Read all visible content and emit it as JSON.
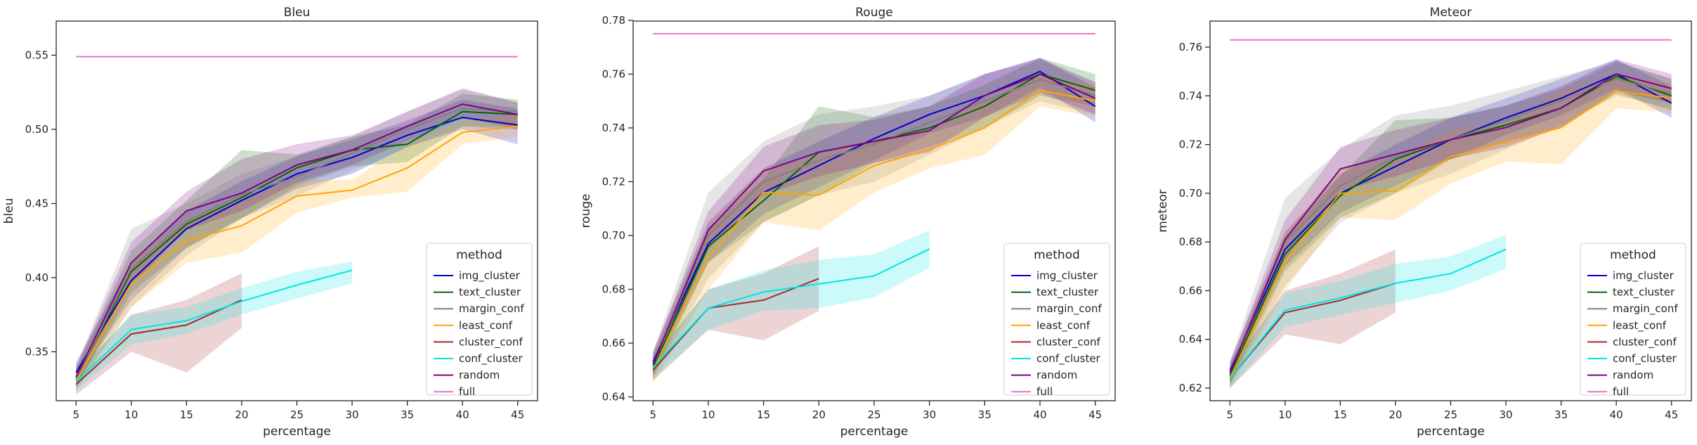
{
  "chart_data": [
    {
      "type": "line",
      "title": "Bleu",
      "xlabel": "percentage",
      "ylabel": "bleu",
      "xlim": [
        3.2,
        46.8
      ],
      "ylim": [
        0.317,
        0.573
      ],
      "xticks": [
        5,
        10,
        15,
        20,
        25,
        30,
        35,
        40,
        45
      ],
      "xtick_labels": [
        "5",
        "10",
        "15",
        "20",
        "25",
        "30",
        "35",
        "40",
        "45"
      ],
      "yticks": [
        0.35,
        0.4,
        0.45,
        0.5,
        0.55
      ],
      "ytick_labels": [
        "0.35",
        "0.40",
        "0.45",
        "0.50",
        "0.55"
      ],
      "grid": false,
      "legend_placement": "lower-right",
      "legend_title": "method",
      "series": [
        {
          "name": "img_cluster",
          "color": "#0000cc",
          "x": [
            5,
            10,
            15,
            20,
            25,
            30,
            35,
            40,
            45
          ],
          "values": [
            0.336,
            0.398,
            0.433,
            0.452,
            0.47,
            0.481,
            0.496,
            0.508,
            0.503
          ],
          "lower": [
            0.33,
            0.385,
            0.42,
            0.44,
            0.46,
            0.47,
            0.488,
            0.5,
            0.49
          ],
          "upper": [
            0.343,
            0.41,
            0.445,
            0.465,
            0.482,
            0.493,
            0.506,
            0.52,
            0.514
          ]
        },
        {
          "name": "text_cluster",
          "color": "#006600",
          "x": [
            5,
            10,
            15,
            20,
            25,
            30,
            35,
            40,
            45
          ],
          "values": [
            0.332,
            0.404,
            0.436,
            0.454,
            0.474,
            0.486,
            0.49,
            0.512,
            0.51
          ],
          "lower": [
            0.326,
            0.39,
            0.42,
            0.44,
            0.462,
            0.475,
            0.478,
            0.502,
            0.5
          ],
          "upper": [
            0.338,
            0.418,
            0.452,
            0.486,
            0.483,
            0.495,
            0.503,
            0.524,
            0.52
          ]
        },
        {
          "name": "margin_conf",
          "color": "#808080",
          "x": [
            5,
            10,
            15,
            20,
            25,
            30,
            35,
            40,
            45
          ],
          "values": [
            0.332,
            0.406,
            0.438,
            0.456,
            0.468,
            0.484,
            0.5,
            0.514,
            0.512
          ],
          "lower": [
            0.325,
            0.38,
            0.415,
            0.44,
            0.455,
            0.472,
            0.488,
            0.502,
            0.502
          ],
          "upper": [
            0.34,
            0.433,
            0.45,
            0.47,
            0.482,
            0.495,
            0.512,
            0.528,
            0.518
          ]
        },
        {
          "name": "least_conf",
          "color": "#ffa500",
          "x": [
            5,
            10,
            15,
            20,
            25,
            30,
            35,
            40,
            45
          ],
          "values": [
            0.33,
            0.396,
            0.425,
            0.435,
            0.455,
            0.459,
            0.474,
            0.498,
            0.502
          ],
          "lower": [
            0.323,
            0.38,
            0.41,
            0.417,
            0.444,
            0.454,
            0.458,
            0.49,
            0.495
          ],
          "upper": [
            0.337,
            0.41,
            0.44,
            0.453,
            0.466,
            0.466,
            0.49,
            0.506,
            0.51
          ]
        },
        {
          "name": "cluster_conf",
          "color": "#a52a2a",
          "x": [
            5,
            10,
            15,
            20
          ],
          "values": [
            0.328,
            0.362,
            0.368,
            0.385
          ],
          "lower": [
            0.321,
            0.35,
            0.336,
            0.366
          ],
          "upper": [
            0.335,
            0.375,
            0.385,
            0.403
          ]
        },
        {
          "name": "conf_cluster",
          "color": "#00e5e5",
          "x": [
            5,
            10,
            15,
            20,
            25,
            30
          ],
          "values": [
            0.33,
            0.365,
            0.371,
            0.384,
            0.395,
            0.405
          ],
          "lower": [
            0.324,
            0.355,
            0.362,
            0.375,
            0.386,
            0.396
          ],
          "upper": [
            0.336,
            0.375,
            0.38,
            0.393,
            0.404,
            0.411
          ]
        },
        {
          "name": "random",
          "color": "#800080",
          "x": [
            5,
            10,
            15,
            20,
            25,
            30,
            35,
            40,
            45
          ],
          "values": [
            0.333,
            0.41,
            0.445,
            0.457,
            0.476,
            0.486,
            0.502,
            0.517,
            0.51
          ],
          "lower": [
            0.327,
            0.395,
            0.432,
            0.445,
            0.464,
            0.476,
            0.492,
            0.508,
            0.5
          ],
          "upper": [
            0.34,
            0.424,
            0.458,
            0.48,
            0.49,
            0.496,
            0.512,
            0.527,
            0.518
          ]
        },
        {
          "name": "full",
          "color": "#e377c2",
          "x": [
            5,
            45
          ],
          "values": [
            0.549,
            0.549
          ]
        }
      ]
    },
    {
      "type": "line",
      "title": "Rouge",
      "xlabel": "percentage",
      "ylabel": "rouge",
      "xlim": [
        3.2,
        46.8
      ],
      "ylim": [
        0.6386,
        0.7797
      ],
      "xticks": [
        5,
        10,
        15,
        20,
        25,
        30,
        35,
        40,
        45
      ],
      "xtick_labels": [
        "5",
        "10",
        "15",
        "20",
        "25",
        "30",
        "35",
        "40",
        "45"
      ],
      "yticks": [
        0.64,
        0.66,
        0.68,
        0.7,
        0.72,
        0.74,
        0.76,
        0.78
      ],
      "ytick_labels": [
        "0.64",
        "0.66",
        "0.68",
        "0.70",
        "0.72",
        "0.74",
        "0.76",
        "0.78"
      ],
      "grid": false,
      "legend_placement": "lower-right",
      "legend_title": "method",
      "series": [
        {
          "name": "img_cluster",
          "color": "#0000cc",
          "x": [
            5,
            10,
            15,
            20,
            25,
            30,
            35,
            40,
            45
          ],
          "values": [
            0.653,
            0.697,
            0.716,
            0.726,
            0.736,
            0.745,
            0.752,
            0.761,
            0.748
          ],
          "lower": [
            0.649,
            0.69,
            0.708,
            0.718,
            0.728,
            0.738,
            0.744,
            0.755,
            0.742
          ],
          "upper": [
            0.657,
            0.705,
            0.725,
            0.735,
            0.744,
            0.752,
            0.76,
            0.766,
            0.755
          ]
        },
        {
          "name": "text_cluster",
          "color": "#006600",
          "x": [
            5,
            10,
            15,
            20,
            25,
            30,
            35,
            40,
            45
          ],
          "values": [
            0.651,
            0.696,
            0.713,
            0.731,
            0.735,
            0.74,
            0.748,
            0.76,
            0.754
          ],
          "lower": [
            0.647,
            0.69,
            0.705,
            0.715,
            0.727,
            0.733,
            0.74,
            0.752,
            0.748
          ],
          "upper": [
            0.655,
            0.703,
            0.721,
            0.748,
            0.744,
            0.748,
            0.756,
            0.766,
            0.76
          ]
        },
        {
          "name": "margin_conf",
          "color": "#808080",
          "x": [
            5,
            10,
            15,
            20,
            25,
            30,
            35,
            40,
            45
          ],
          "values": [
            0.652,
            0.7,
            0.72,
            0.728,
            0.734,
            0.742,
            0.75,
            0.758,
            0.752
          ],
          "lower": [
            0.647,
            0.684,
            0.705,
            0.715,
            0.72,
            0.73,
            0.74,
            0.75,
            0.745
          ],
          "upper": [
            0.657,
            0.716,
            0.735,
            0.745,
            0.748,
            0.752,
            0.76,
            0.765,
            0.757
          ]
        },
        {
          "name": "least_conf",
          "color": "#ffa500",
          "x": [
            5,
            10,
            15,
            20,
            25,
            30,
            35,
            40,
            45
          ],
          "values": [
            0.65,
            0.692,
            0.716,
            0.715,
            0.726,
            0.732,
            0.74,
            0.754,
            0.75
          ],
          "lower": [
            0.645,
            0.68,
            0.705,
            0.702,
            0.716,
            0.725,
            0.73,
            0.748,
            0.744
          ],
          "upper": [
            0.655,
            0.704,
            0.725,
            0.73,
            0.736,
            0.74,
            0.75,
            0.76,
            0.756
          ]
        },
        {
          "name": "cluster_conf",
          "color": "#a52a2a",
          "x": [
            5,
            10,
            15,
            20
          ],
          "values": [
            0.65,
            0.673,
            0.676,
            0.684
          ],
          "lower": [
            0.646,
            0.665,
            0.661,
            0.672
          ],
          "upper": [
            0.654,
            0.68,
            0.686,
            0.696
          ]
        },
        {
          "name": "conf_cluster",
          "color": "#00e5e5",
          "x": [
            5,
            10,
            15,
            20,
            25,
            30
          ],
          "values": [
            0.651,
            0.673,
            0.679,
            0.682,
            0.685,
            0.695
          ],
          "lower": [
            0.647,
            0.665,
            0.672,
            0.673,
            0.677,
            0.688
          ],
          "upper": [
            0.655,
            0.68,
            0.687,
            0.691,
            0.693,
            0.702
          ]
        },
        {
          "name": "random",
          "color": "#800080",
          "x": [
            5,
            10,
            15,
            20,
            25,
            30,
            35,
            40,
            45
          ],
          "values": [
            0.652,
            0.702,
            0.724,
            0.731,
            0.735,
            0.739,
            0.752,
            0.76,
            0.751
          ],
          "lower": [
            0.648,
            0.695,
            0.715,
            0.722,
            0.727,
            0.731,
            0.744,
            0.753,
            0.745
          ],
          "upper": [
            0.656,
            0.709,
            0.733,
            0.741,
            0.743,
            0.748,
            0.76,
            0.766,
            0.757
          ]
        },
        {
          "name": "full",
          "color": "#e377c2",
          "x": [
            5,
            45
          ],
          "values": [
            0.775,
            0.775
          ]
        }
      ]
    },
    {
      "type": "line",
      "title": "Meteor",
      "xlabel": "percentage",
      "ylabel": "meteor",
      "xlim": [
        3.2,
        46.8
      ],
      "ylim": [
        0.6148,
        0.7707
      ],
      "xticks": [
        5,
        10,
        15,
        20,
        25,
        30,
        35,
        40,
        45
      ],
      "xtick_labels": [
        "5",
        "10",
        "15",
        "20",
        "25",
        "30",
        "35",
        "40",
        "45"
      ],
      "yticks": [
        0.62,
        0.64,
        0.66,
        0.68,
        0.7,
        0.72,
        0.74,
        0.76
      ],
      "ytick_labels": [
        "0.62",
        "0.64",
        "0.66",
        "0.68",
        "0.70",
        "0.72",
        "0.74",
        "0.76"
      ],
      "grid": false,
      "legend_placement": "lower-right",
      "legend_title": "method",
      "series": [
        {
          "name": "img_cluster",
          "color": "#0000cc",
          "x": [
            5,
            10,
            15,
            20,
            25,
            30,
            35,
            40,
            45
          ],
          "values": [
            0.627,
            0.677,
            0.7,
            0.711,
            0.722,
            0.731,
            0.739,
            0.749,
            0.737
          ],
          "lower": [
            0.623,
            0.67,
            0.692,
            0.703,
            0.714,
            0.724,
            0.732,
            0.743,
            0.731
          ],
          "upper": [
            0.631,
            0.684,
            0.708,
            0.72,
            0.731,
            0.739,
            0.747,
            0.755,
            0.744
          ]
        },
        {
          "name": "text_cluster",
          "color": "#006600",
          "x": [
            5,
            10,
            15,
            20,
            25,
            30,
            35,
            40,
            45
          ],
          "values": [
            0.625,
            0.675,
            0.699,
            0.714,
            0.722,
            0.728,
            0.735,
            0.748,
            0.74
          ],
          "lower": [
            0.621,
            0.668,
            0.69,
            0.7,
            0.714,
            0.721,
            0.727,
            0.741,
            0.734
          ],
          "upper": [
            0.629,
            0.682,
            0.707,
            0.73,
            0.731,
            0.736,
            0.743,
            0.754,
            0.747
          ]
        },
        {
          "name": "margin_conf",
          "color": "#808080",
          "x": [
            5,
            10,
            15,
            20,
            25,
            30,
            35,
            40,
            45
          ],
          "values": [
            0.626,
            0.68,
            0.703,
            0.715,
            0.722,
            0.73,
            0.738,
            0.747,
            0.741
          ],
          "lower": [
            0.621,
            0.662,
            0.688,
            0.7,
            0.708,
            0.718,
            0.728,
            0.74,
            0.735
          ],
          "upper": [
            0.631,
            0.698,
            0.718,
            0.732,
            0.736,
            0.742,
            0.748,
            0.754,
            0.747
          ]
        },
        {
          "name": "least_conf",
          "color": "#ffa500",
          "x": [
            5,
            10,
            15,
            20,
            25,
            30,
            35,
            40,
            45
          ],
          "values": [
            0.624,
            0.672,
            0.7,
            0.701,
            0.715,
            0.721,
            0.727,
            0.742,
            0.739
          ],
          "lower": [
            0.619,
            0.66,
            0.69,
            0.689,
            0.704,
            0.713,
            0.712,
            0.735,
            0.733
          ],
          "upper": [
            0.629,
            0.684,
            0.71,
            0.714,
            0.726,
            0.729,
            0.742,
            0.748,
            0.745
          ]
        },
        {
          "name": "cluster_conf",
          "color": "#a52a2a",
          "x": [
            5,
            10,
            15,
            20
          ],
          "values": [
            0.624,
            0.651,
            0.656,
            0.663
          ],
          "lower": [
            0.62,
            0.642,
            0.638,
            0.651
          ],
          "upper": [
            0.628,
            0.66,
            0.667,
            0.677
          ]
        },
        {
          "name": "conf_cluster",
          "color": "#00e5e5",
          "x": [
            5,
            10,
            15,
            20,
            25,
            30
          ],
          "values": [
            0.624,
            0.652,
            0.657,
            0.663,
            0.667,
            0.677
          ],
          "lower": [
            0.62,
            0.645,
            0.65,
            0.655,
            0.66,
            0.669
          ],
          "upper": [
            0.628,
            0.659,
            0.664,
            0.671,
            0.674,
            0.683
          ]
        },
        {
          "name": "random",
          "color": "#800080",
          "x": [
            5,
            10,
            15,
            20,
            25,
            30,
            35,
            40,
            45
          ],
          "values": [
            0.626,
            0.681,
            0.71,
            0.716,
            0.722,
            0.727,
            0.735,
            0.749,
            0.743
          ],
          "lower": [
            0.622,
            0.673,
            0.701,
            0.707,
            0.714,
            0.719,
            0.727,
            0.742,
            0.737
          ],
          "upper": [
            0.63,
            0.689,
            0.719,
            0.726,
            0.731,
            0.736,
            0.744,
            0.755,
            0.749
          ]
        },
        {
          "name": "full",
          "color": "#e377c2",
          "x": [
            5,
            45
          ],
          "values": [
            0.763,
            0.763
          ]
        }
      ]
    }
  ]
}
